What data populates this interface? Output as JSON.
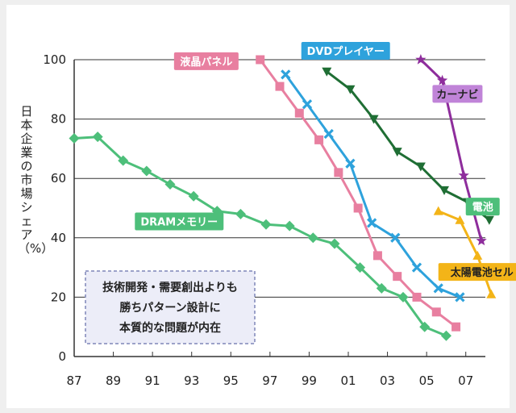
{
  "chart_data": {
    "type": "line",
    "title": "",
    "xlabel": "",
    "ylabel": "日本企業の市場シェア（%）",
    "x_ticks": [
      "87",
      "89",
      "91",
      "93",
      "95",
      "97",
      "99",
      "01",
      "03",
      "05",
      "07"
    ],
    "y_ticks": [
      "0",
      "20",
      "40",
      "60",
      "80",
      "100"
    ],
    "xlim": [
      1987,
      2008
    ],
    "ylim": [
      0,
      100
    ],
    "grid": "horizontal",
    "series": [
      {
        "name": "DRAMメモリー",
        "color": "#4dbf7a",
        "marker": "diamond",
        "x": [
          1987,
          1988.2,
          1989.5,
          1990.7,
          1991.9,
          1993.1,
          1994.3,
          1995.5,
          1996.8,
          1998,
          1999.2,
          2000.3,
          2001.6,
          2002.7,
          2003.8,
          2004.9,
          2006
        ],
        "y": [
          73.5,
          74,
          66,
          62.5,
          58,
          54,
          49,
          48,
          44.5,
          44,
          40,
          38,
          30,
          23,
          20,
          10,
          7
        ]
      },
      {
        "name": "液晶パネル",
        "color": "#e87fa0",
        "marker": "square",
        "x": [
          1996.5,
          1997.5,
          1998.5,
          1999.5,
          2000.5,
          2001.5,
          2002.5,
          2003.5,
          2004.5,
          2005.5,
          2006.5
        ],
        "y": [
          100,
          91,
          82,
          73,
          62,
          50,
          34,
          27,
          20,
          15,
          10
        ]
      },
      {
        "name": "DVDプレイヤー",
        "color": "#2ea2dc",
        "marker": "x",
        "x": [
          1997.8,
          1998.9,
          2000,
          2001.1,
          2002.2,
          2003.4,
          2004.5,
          2005.6,
          2006.7
        ],
        "y": [
          95,
          85,
          75,
          65,
          45,
          40,
          30,
          23,
          20
        ]
      },
      {
        "name": "電池",
        "color": "#1f6e34",
        "marker": "triangle-down",
        "x": [
          1999.9,
          2001.1,
          2002.3,
          2003.5,
          2004.7,
          2005.9,
          2007.1,
          2008.2
        ],
        "y": [
          96,
          90,
          80,
          69,
          64,
          56,
          52,
          46
        ]
      },
      {
        "name": "カーナビ",
        "color": "#8e2d9c",
        "marker": "star",
        "x": [
          2004.7,
          2005.8,
          2006.9,
          2007.8
        ],
        "y": [
          100,
          93,
          61,
          39
        ]
      },
      {
        "name": "太陽電池セル",
        "color": "#f3b418",
        "marker": "triangle-up",
        "x": [
          2005.6,
          2006.7,
          2007.6,
          2008.3
        ],
        "y": [
          49,
          46,
          34,
          21
        ]
      }
    ],
    "annotation": [
      "技術開発・需要創出よりも",
      "勝ちパターン設計に",
      "本質的な問題が内在"
    ]
  }
}
